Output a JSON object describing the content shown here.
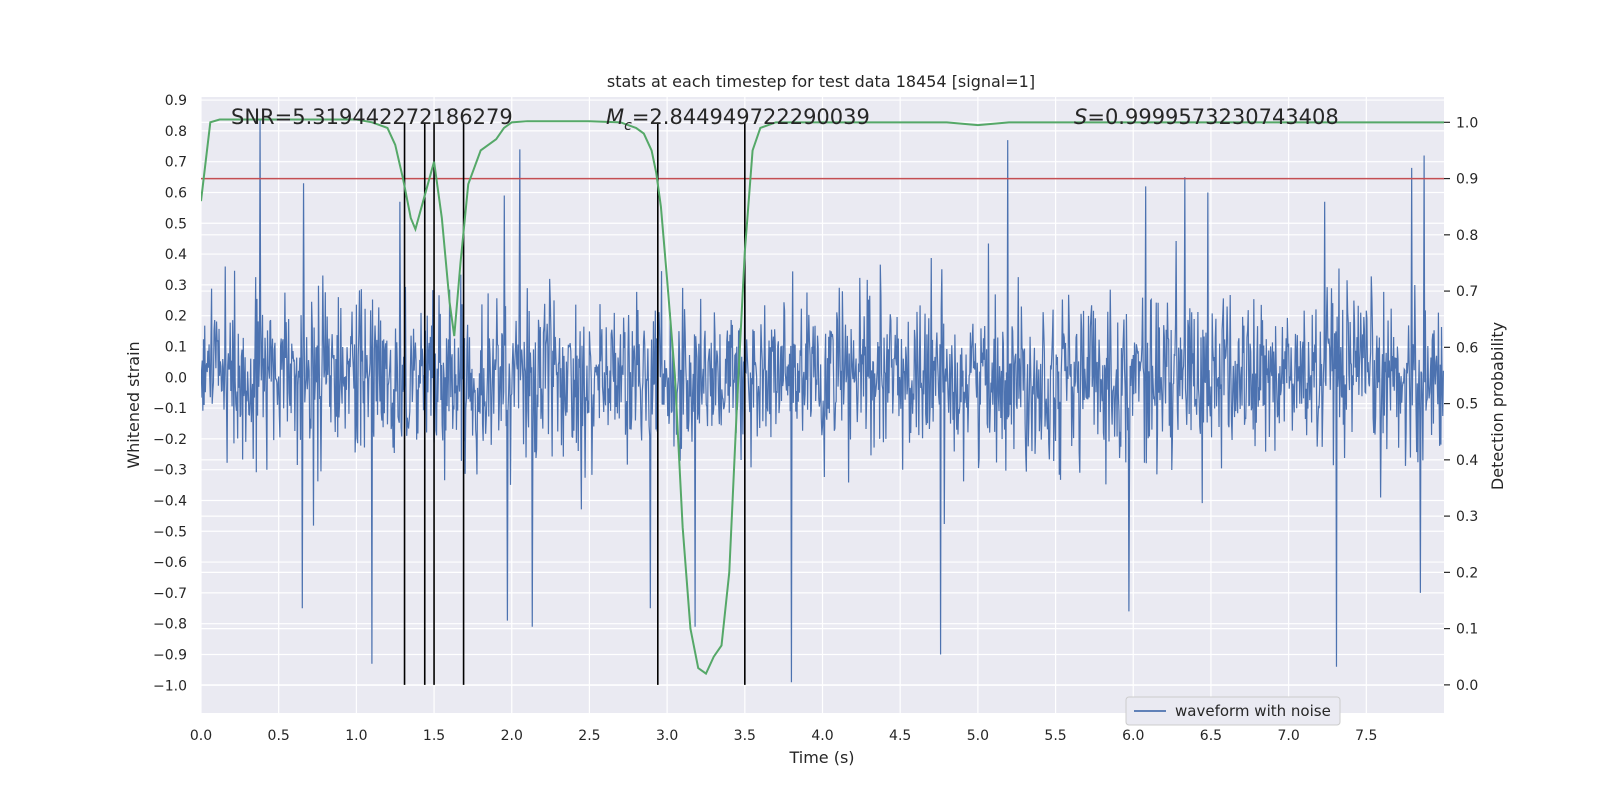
{
  "chart_data": {
    "type": "line",
    "title": "stats at each timestep for test data 18454 [signal=1]",
    "xlabel": "Time (s)",
    "ylabel": "Whitened strain",
    "y2label": "Detection probability",
    "xlim": [
      0.0,
      8.0
    ],
    "ylim": [
      -1.09,
      0.91
    ],
    "y2lim": [
      -0.05,
      1.045
    ],
    "xticks": [
      "0.0",
      "0.5",
      "1.0",
      "1.5",
      "2.0",
      "2.5",
      "3.0",
      "3.5",
      "4.0",
      "4.5",
      "5.0",
      "5.5",
      "6.0",
      "6.5",
      "7.0",
      "7.5"
    ],
    "xtick_values": [
      0.0,
      0.5,
      1.0,
      1.5,
      2.0,
      2.5,
      3.0,
      3.5,
      4.0,
      4.5,
      5.0,
      5.5,
      6.0,
      6.5,
      7.0,
      7.5
    ],
    "yticks": [
      "0.9",
      "0.8",
      "0.7",
      "0.6",
      "0.5",
      "0.4",
      "0.3",
      "0.2",
      "0.1",
      "0.0",
      "−0.1",
      "−0.2",
      "−0.3",
      "−0.4",
      "−0.5",
      "−0.6",
      "−0.7",
      "−0.8",
      "−0.9",
      "−1.0"
    ],
    "ytick_values": [
      0.9,
      0.8,
      0.7,
      0.6,
      0.5,
      0.4,
      0.3,
      0.2,
      0.1,
      0.0,
      -0.1,
      -0.2,
      -0.3,
      -0.4,
      -0.5,
      -0.6,
      -0.7,
      -0.8,
      -0.9,
      -1.0
    ],
    "y2ticks": [
      "1.0",
      "0.9",
      "0.8",
      "0.7",
      "0.6",
      "0.5",
      "0.4",
      "0.3",
      "0.2",
      "0.1",
      "0.0"
    ],
    "y2tick_values": [
      1.0,
      0.9,
      0.8,
      0.7,
      0.6,
      0.5,
      0.4,
      0.3,
      0.2,
      0.1,
      0.0
    ],
    "annotations": {
      "snr": "SNR=5.319442272186279",
      "mc_symbol": "M",
      "mc_sub": "c",
      "mc_value": "=2.844949722290039",
      "s_symbol": "S",
      "s_value": "=0.9999573230743408"
    },
    "legend": {
      "label": "waveform with noise",
      "position": "lower-right"
    },
    "series": [
      {
        "name": "waveform with noise",
        "axis": "left",
        "color": "#4c72b0",
        "samples": 2000,
        "noise_sigma": 0.13,
        "spikes": [
          {
            "x": 0.38,
            "y": 0.84
          },
          {
            "x": 0.66,
            "y": 0.63
          },
          {
            "x": 0.65,
            "y": -0.75
          },
          {
            "x": 1.1,
            "y": -0.93
          },
          {
            "x": 1.28,
            "y": 0.57
          },
          {
            "x": 1.95,
            "y": 0.59
          },
          {
            "x": 2.05,
            "y": 0.74
          },
          {
            "x": 2.13,
            "y": -0.81
          },
          {
            "x": 1.97,
            "y": -0.79
          },
          {
            "x": 2.89,
            "y": -0.75
          },
          {
            "x": 3.18,
            "y": -0.81
          },
          {
            "x": 3.8,
            "y": -0.99
          },
          {
            "x": 4.76,
            "y": -0.9
          },
          {
            "x": 5.19,
            "y": 0.77
          },
          {
            "x": 5.97,
            "y": -0.76
          },
          {
            "x": 6.08,
            "y": 0.62
          },
          {
            "x": 6.33,
            "y": 0.65
          },
          {
            "x": 6.48,
            "y": 0.6
          },
          {
            "x": 7.23,
            "y": 0.57
          },
          {
            "x": 7.31,
            "y": -0.94
          },
          {
            "x": 7.79,
            "y": 0.68
          },
          {
            "x": 7.87,
            "y": 0.72
          },
          {
            "x": 7.85,
            "y": -0.7
          }
        ]
      },
      {
        "name": "detection probability",
        "axis": "right",
        "color": "#55a868",
        "x": [
          0.0,
          0.06,
          0.12,
          0.25,
          0.5,
          1.0,
          1.1,
          1.2,
          1.25,
          1.3,
          1.35,
          1.38,
          1.43,
          1.5,
          1.55,
          1.6,
          1.63,
          1.67,
          1.72,
          1.8,
          1.9,
          1.95,
          2.0,
          2.1,
          2.5,
          2.7,
          2.8,
          2.85,
          2.9,
          2.93,
          2.96,
          3.0,
          3.05,
          3.1,
          3.15,
          3.2,
          3.25,
          3.3,
          3.35,
          3.4,
          3.45,
          3.5,
          3.55,
          3.6,
          3.7,
          3.8,
          4.0,
          4.5,
          4.8,
          5.0,
          5.2,
          5.5,
          6.0,
          7.0,
          8.0
        ],
        "y": [
          0.86,
          1.0,
          1.005,
          1.005,
          1.005,
          1.005,
          1.0,
          0.99,
          0.96,
          0.9,
          0.83,
          0.81,
          0.86,
          0.93,
          0.83,
          0.68,
          0.62,
          0.75,
          0.89,
          0.95,
          0.97,
          0.99,
          1.0,
          1.002,
          1.002,
          1.0,
          0.99,
          0.98,
          0.95,
          0.91,
          0.85,
          0.72,
          0.55,
          0.28,
          0.1,
          0.03,
          0.02,
          0.05,
          0.07,
          0.2,
          0.5,
          0.77,
          0.95,
          0.99,
          1.0,
          1.0,
          1.0,
          1.0,
          1.0,
          0.995,
          1.0,
          1.0,
          1.0,
          1.0,
          1.0
        ]
      }
    ],
    "threshold": {
      "axis": "right",
      "value": 0.9,
      "color": "#c44e52"
    },
    "vlines": [
      1.31,
      1.44,
      1.5,
      1.69,
      2.94,
      3.5
    ]
  }
}
